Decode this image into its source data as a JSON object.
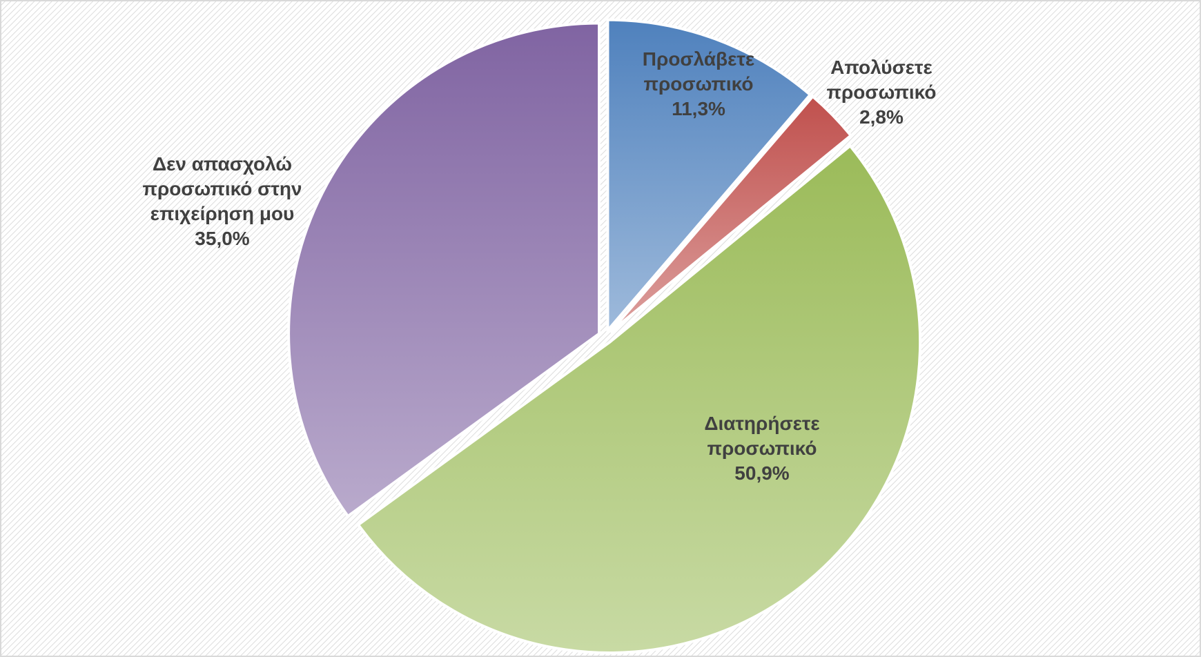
{
  "chart_data": {
    "type": "pie",
    "categories": [
      "Προσλάβετε προσωπικό",
      "Απολύσετε προσωπικό",
      "Διατηρήσετε προσωπικό",
      "Δεν απασχολώ προσωπικό στην επιχείρηση μου"
    ],
    "values": [
      11.3,
      2.8,
      50.9,
      35.0
    ],
    "value_labels": [
      "11,3%",
      "2,8%",
      "50,9%",
      "35,0%"
    ],
    "colors": [
      "#4f81bd",
      "#c0504d",
      "#9bbb59",
      "#8064a2"
    ]
  }
}
